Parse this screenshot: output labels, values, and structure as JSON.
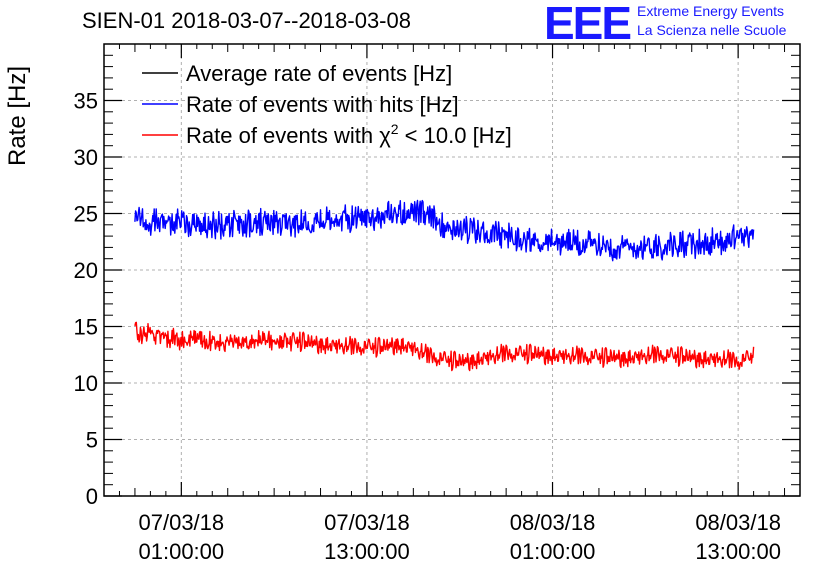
{
  "header": {
    "title": "SIEN-01 2018-03-07--2018-03-08",
    "logo_mark": "EEE",
    "logo_line1": "Extreme Energy Events",
    "logo_line2": "La Scienza nelle Scuole"
  },
  "colors": {
    "average": "#000000",
    "hits": "#0000ff",
    "chi2": "#ff0000",
    "logo": "#1a1aff",
    "grid": "#b0b0b0"
  },
  "chart_data": {
    "type": "line",
    "title": "SIEN-01 2018-03-07--2018-03-08",
    "xlabel": "",
    "ylabel": "Rate [Hz]",
    "x_units": "hours since 2018-03-07 00:00",
    "xlim": [
      -4,
      41
    ],
    "ylim": [
      0,
      40
    ],
    "y_ticks": [
      0,
      5,
      10,
      15,
      20,
      25,
      30,
      35
    ],
    "x_ticks": [
      {
        "x": 1,
        "line1": "07/03/18",
        "line2": "01:00:00"
      },
      {
        "x": 13,
        "line1": "07/03/18",
        "line2": "13:00:00"
      },
      {
        "x": 25,
        "line1": "08/03/18",
        "line2": "01:00:00"
      },
      {
        "x": 37,
        "line1": "08/03/18",
        "line2": "13:00:00"
      }
    ],
    "grid": true,
    "legend_position": "top-left",
    "series": [
      {
        "name": "Average rate of events [Hz]",
        "name_prefix": "",
        "name_superscript": "",
        "name_suffix": "",
        "color": "#000000",
        "noise": 0,
        "x": [],
        "y": []
      },
      {
        "name": "Rate of events with hits [Hz]",
        "name_prefix": "",
        "name_superscript": "",
        "name_suffix": "",
        "color": "#0000ff",
        "noise": 1.0,
        "x": [
          -2,
          0,
          2,
          4,
          6,
          8,
          10,
          12,
          14,
          15,
          16,
          17,
          18,
          19,
          20,
          22,
          24,
          26,
          28,
          30,
          32,
          34,
          36,
          37,
          38
        ],
        "y": [
          24.6,
          24.2,
          24.0,
          23.9,
          24.1,
          24.2,
          24.4,
          24.6,
          24.8,
          25.0,
          25.2,
          24.6,
          24.0,
          23.7,
          23.4,
          23.0,
          22.5,
          22.4,
          22.2,
          22.0,
          22.2,
          22.3,
          22.5,
          23.0,
          23.2
        ]
      },
      {
        "name": "Rate of events with χ2 < 10.0 [Hz]",
        "name_prefix": "Rate of events with χ",
        "name_superscript": "2",
        "name_suffix": " < 10.0 [Hz]",
        "color": "#ff0000",
        "noise": 0.75,
        "x": [
          -2,
          0,
          2,
          4,
          6,
          8,
          10,
          12,
          14,
          15,
          16,
          17,
          18,
          19,
          20,
          22,
          24,
          26,
          28,
          30,
          32,
          34,
          36,
          37,
          38
        ],
        "y": [
          14.4,
          14.0,
          13.7,
          13.6,
          13.8,
          13.7,
          13.4,
          13.1,
          13.1,
          13.4,
          13.0,
          12.3,
          12.0,
          11.8,
          12.0,
          12.5,
          12.5,
          12.3,
          12.2,
          12.2,
          12.4,
          12.2,
          12.0,
          11.8,
          12.3
        ]
      }
    ]
  }
}
